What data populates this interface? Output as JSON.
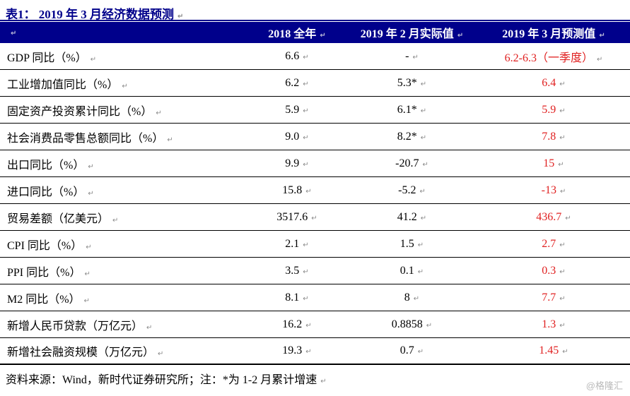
{
  "meta": {
    "pilcrow": "↵"
  },
  "colors": {
    "navy": "#00008b",
    "red": "#e02121",
    "text": "#000000",
    "watermark": "#b9b9b9"
  },
  "title": "表1：  2019 年 3 月经济数据预测",
  "table": {
    "columns": [
      "",
      "2018 全年",
      "2019 年 2 月实际值",
      "2019 年 3 月预测值"
    ],
    "rows": [
      {
        "label": "GDP 同比（%）",
        "y2018": "6.6",
        "feb2019": "-",
        "mar2019": "6.2-6.3（一季度）"
      },
      {
        "label": "工业增加值同比（%）",
        "y2018": "6.2",
        "feb2019": "5.3*",
        "mar2019": "6.4"
      },
      {
        "label": "固定资产投资累计同比（%）",
        "y2018": "5.9",
        "feb2019": "6.1*",
        "mar2019": "5.9"
      },
      {
        "label": "社会消费品零售总额同比（%）",
        "y2018": "9.0",
        "feb2019": "8.2*",
        "mar2019": "7.8"
      },
      {
        "label": "出口同比（%）",
        "y2018": "9.9",
        "feb2019": "-20.7",
        "mar2019": "15"
      },
      {
        "label": "进口同比（%）",
        "y2018": "15.8",
        "feb2019": "-5.2",
        "mar2019": "-13"
      },
      {
        "label": "贸易差额（亿美元）",
        "y2018": "3517.6",
        "feb2019": "41.2",
        "mar2019": "436.7"
      },
      {
        "label": "CPI 同比（%）",
        "y2018": "2.1",
        "feb2019": "1.5",
        "mar2019": "2.7"
      },
      {
        "label": "PPI 同比（%）",
        "y2018": "3.5",
        "feb2019": "0.1",
        "mar2019": "0.3"
      },
      {
        "label": "M2 同比（%）",
        "y2018": "8.1",
        "feb2019": "8",
        "mar2019": "7.7"
      },
      {
        "label": "新增人民币贷款（万亿元）",
        "y2018": "16.2",
        "feb2019": "0.8858",
        "mar2019": "1.3"
      },
      {
        "label": "新增社会融资规模（万亿元）",
        "y2018": "19.3",
        "feb2019": "0.7",
        "mar2019": "1.45"
      }
    ]
  },
  "footer": {
    "source_note": "资料来源：Wind，新时代证券研究所；注：*为 1-2 月累计增速",
    "watermark": "@格隆汇"
  }
}
